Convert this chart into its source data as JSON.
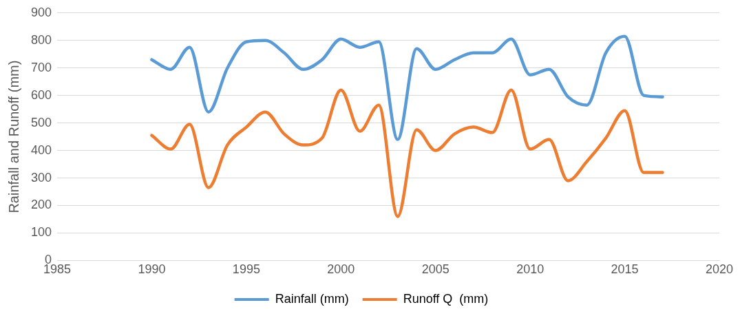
{
  "chart_data": {
    "type": "line",
    "ylabel": "Rainfall and Runoff (mm)",
    "x": [
      1990,
      1991,
      1992,
      1993,
      1994,
      1995,
      1996,
      1997,
      1998,
      1999,
      2000,
      2001,
      2002,
      2003,
      2004,
      2005,
      2006,
      2007,
      2008,
      2009,
      2010,
      2011,
      2012,
      2013,
      2014,
      2015,
      2016,
      2017
    ],
    "series": [
      {
        "name": "Rainfall (mm)",
        "color": "#5b9bd5",
        "values": [
          730,
          695,
          775,
          540,
          700,
          795,
          800,
          755,
          695,
          730,
          805,
          775,
          795,
          440,
          770,
          695,
          730,
          755,
          755,
          805,
          675,
          695,
          595,
          565,
          755,
          815,
          600,
          595
        ]
      },
      {
        "name": "Runoff Q  (mm)",
        "color": "#ed7d31",
        "values": [
          455,
          405,
          495,
          265,
          420,
          485,
          540,
          460,
          420,
          445,
          620,
          470,
          565,
          160,
          475,
          400,
          460,
          485,
          465,
          620,
          405,
          440,
          290,
          360,
          445,
          545,
          320,
          320
        ]
      }
    ],
    "xlim": [
      1985,
      2020
    ],
    "xticks": [
      1985,
      1990,
      1995,
      2000,
      2005,
      2010,
      2015,
      2020
    ],
    "ylim": [
      0,
      900
    ],
    "yticks": [
      0,
      100,
      200,
      300,
      400,
      500,
      600,
      700,
      800,
      900
    ],
    "grid": "y",
    "legend": "bottom",
    "marker": "none",
    "line_style": "solid"
  }
}
